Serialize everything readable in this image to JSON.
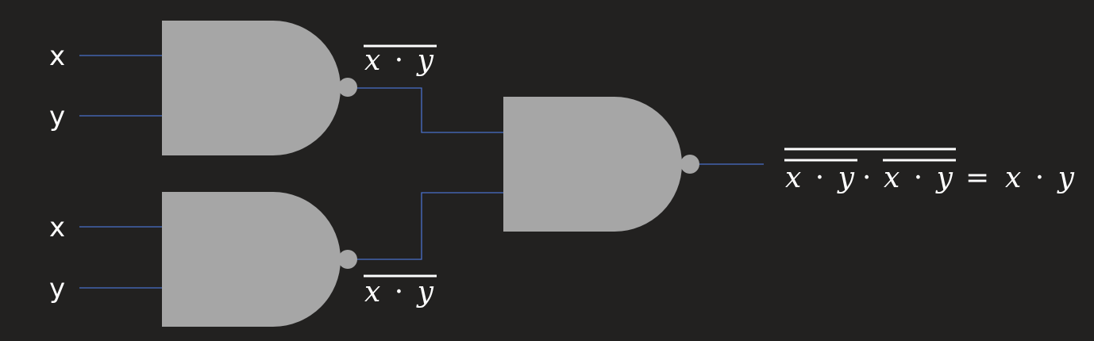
{
  "inputs": {
    "gate1_input1": "x",
    "gate1_input2": "y",
    "gate2_input1": "x",
    "gate2_input2": "y"
  },
  "gate_outputs": {
    "gate1": {
      "var1": "x",
      "op": "·",
      "var2": "y"
    },
    "gate2": {
      "var1": "x",
      "op": "·",
      "var2": "y"
    }
  },
  "final_expression": {
    "left_term": {
      "var1": "x",
      "op": "·",
      "var2": "y"
    },
    "middle_op": "·",
    "right_term": {
      "var1": "x",
      "op": "·",
      "var2": "y"
    },
    "equals": "=",
    "result": {
      "var1": "x",
      "op": "·",
      "var2": "y"
    }
  },
  "colors": {
    "background": "#222120",
    "gate_fill": "#a6a6a6",
    "wire": "#4a6fc9",
    "text": "#ffffff"
  }
}
